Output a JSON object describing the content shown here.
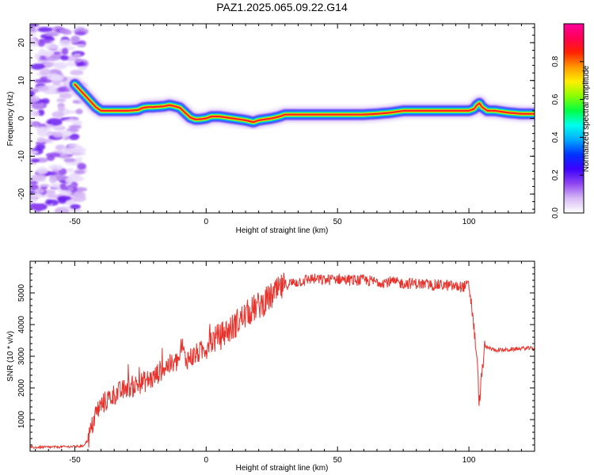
{
  "title": "PAZ1.2025.065.09.22.G14",
  "chart_data": [
    {
      "type": "heatmap",
      "title": "PAZ1.2025.065.09.22.G14",
      "xlabel": "Height of straight line (km)",
      "ylabel": "Frequency (Hz)",
      "xlim": [
        -67,
        125
      ],
      "ylim": [
        -25,
        25
      ],
      "xticks": [
        -50,
        0,
        50,
        100
      ],
      "yticks": [
        20,
        10,
        0,
        -10,
        -20
      ],
      "colorbar": {
        "label": "Normalized spectral amplitude",
        "range": [
          0,
          1
        ],
        "ticks": [
          0.0,
          0.2,
          0.4,
          0.6,
          0.8
        ],
        "colors": [
          "#ffffff",
          "#d6b8f5",
          "#8f45f0",
          "#3c00ff",
          "#0033ff",
          "#00aaff",
          "#00ffee",
          "#00ff44",
          "#88ff00",
          "#ffee00",
          "#ff9900",
          "#ff2200",
          "#ff0055",
          "#ff00a0"
        ]
      },
      "ridge": {
        "x": [
          -50,
          -48,
          -46,
          -44,
          -42,
          -40,
          -35,
          -30,
          -26,
          -24,
          -22,
          -20,
          -16,
          -14,
          -12,
          -10,
          -8,
          -6,
          -4,
          -2,
          0,
          2,
          5,
          10,
          15,
          18,
          20,
          25,
          28,
          30,
          40,
          50,
          60,
          65,
          70,
          75,
          80,
          90,
          100,
          102,
          103,
          104,
          105,
          107,
          110,
          115,
          120,
          125
        ],
        "y": [
          9,
          7.5,
          6,
          4.5,
          3,
          2,
          2,
          2,
          2.2,
          2.8,
          3,
          3,
          3.2,
          3.5,
          3.2,
          2.8,
          1.5,
          0.2,
          -0.3,
          -0.2,
          0,
          0.5,
          0.5,
          0,
          -0.5,
          -1,
          -0.5,
          0,
          0.5,
          1,
          1,
          1,
          1,
          1.2,
          1.5,
          2,
          2,
          2,
          2,
          2.5,
          3.5,
          4,
          3,
          2,
          2,
          1.5,
          1.2,
          1.2
        ]
      },
      "noise_region": {
        "x": [
          -67,
          -47
        ],
        "y": [
          -25,
          25
        ]
      }
    },
    {
      "type": "line",
      "xlabel": "Height of straight line (km)",
      "ylabel": "SNR (10 * v/v)",
      "xlim": [
        -67,
        125
      ],
      "ylim": [
        0,
        6000
      ],
      "xticks": [
        -50,
        0,
        50,
        100
      ],
      "yticks": [
        1000,
        2000,
        3000,
        4000,
        5000
      ],
      "color": "#e8322c",
      "series": [
        {
          "x": [
            -67,
            -60,
            -55,
            -50,
            -47,
            -45,
            -44,
            -43,
            -42,
            -40,
            -38,
            -35,
            -32,
            -30,
            -28,
            -25,
            -22,
            -20,
            -18,
            -15,
            -12,
            -10,
            -9,
            -8,
            -5,
            -3,
            -1,
            0,
            2,
            5,
            8,
            10,
            12,
            15,
            18,
            20,
            22,
            25,
            28,
            30,
            32,
            35,
            40,
            45,
            50,
            55,
            60,
            65,
            70,
            75,
            80,
            85,
            90,
            95,
            98,
            100,
            101,
            101.5,
            102,
            103,
            103.5,
            104,
            105,
            106,
            110,
            115,
            120,
            125
          ],
          "y": [
            120,
            130,
            140,
            150,
            160,
            350,
            600,
            900,
            1200,
            1450,
            1600,
            1800,
            1900,
            2000,
            2050,
            2150,
            2250,
            2300,
            2500,
            2700,
            2750,
            2950,
            3300,
            2900,
            3000,
            3100,
            3200,
            3300,
            3500,
            3600,
            3800,
            3900,
            4100,
            4300,
            4500,
            4600,
            4700,
            4900,
            5100,
            5250,
            5300,
            5350,
            5450,
            5400,
            5450,
            5400,
            5400,
            5350,
            5350,
            5300,
            5300,
            5250,
            5250,
            5200,
            5200,
            5250,
            4600,
            4300,
            3800,
            3000,
            2200,
            1500,
            2500,
            3300,
            3200,
            3200,
            3250,
            3250
          ]
        }
      ]
    }
  ]
}
